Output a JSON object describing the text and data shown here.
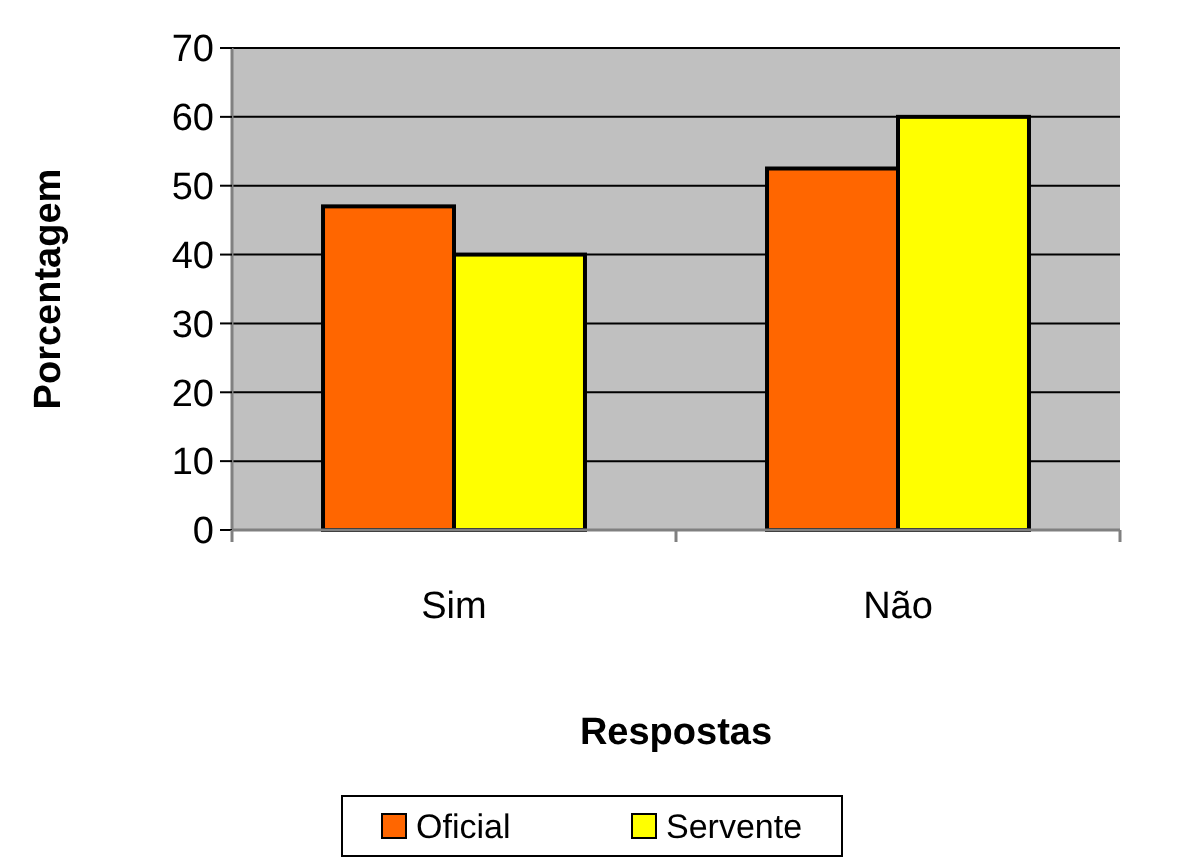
{
  "chart_data": {
    "type": "bar",
    "xlabel": "Respostas",
    "ylabel": "Porcentagem",
    "categories": [
      "Sim",
      "Não"
    ],
    "series": [
      {
        "name": "Oficial",
        "color": "#ff6600",
        "values": [
          47,
          52.5
        ]
      },
      {
        "name": "Servente",
        "color": "#ffff00",
        "values": [
          40,
          60
        ]
      }
    ],
    "ylim": [
      0,
      70
    ],
    "yticks": [
      0,
      10,
      20,
      30,
      40,
      50,
      60,
      70
    ],
    "grid": "y",
    "legend": "bottom"
  }
}
